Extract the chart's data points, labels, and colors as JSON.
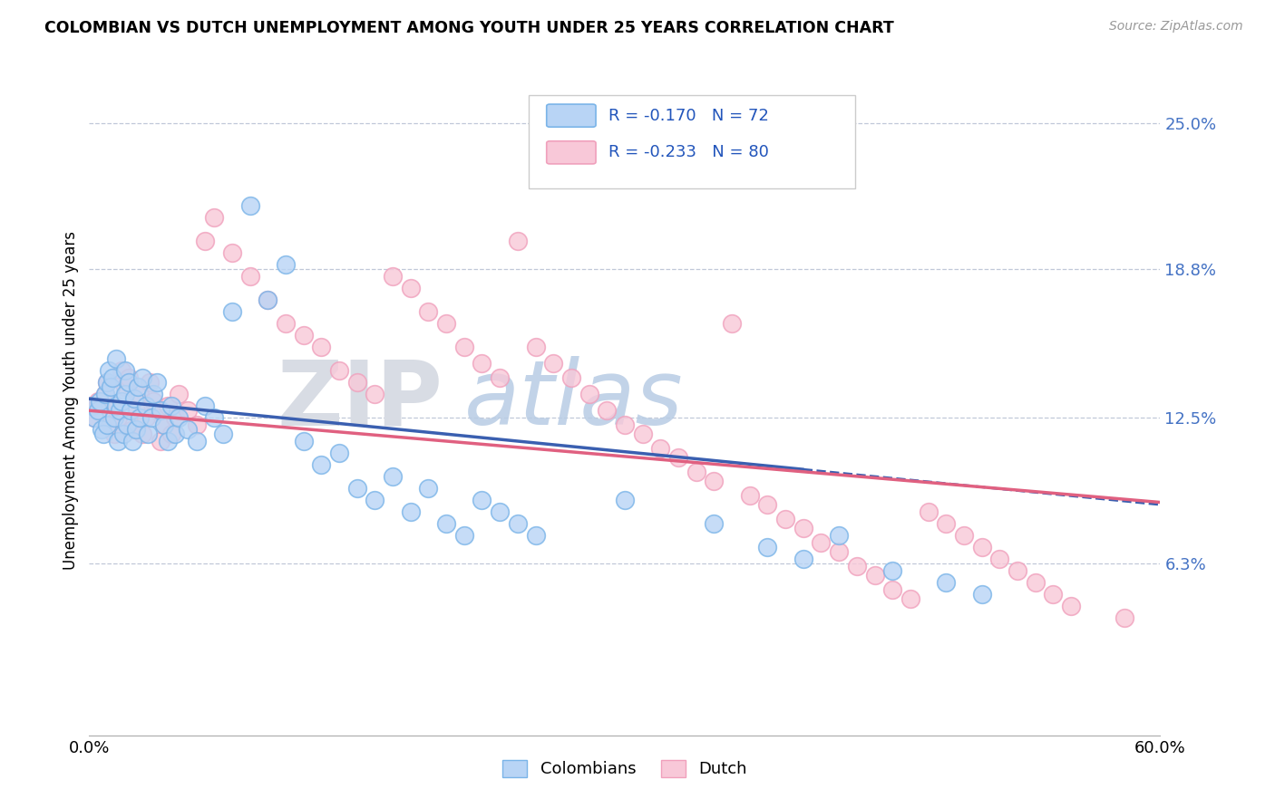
{
  "title": "COLOMBIAN VS DUTCH UNEMPLOYMENT AMONG YOUTH UNDER 25 YEARS CORRELATION CHART",
  "source": "Source: ZipAtlas.com",
  "ylabel": "Unemployment Among Youth under 25 years",
  "yticks_right": [
    0.063,
    0.125,
    0.188,
    0.25
  ],
  "ytick_labels_right": [
    "6.3%",
    "12.5%",
    "18.8%",
    "25.0%"
  ],
  "xlim": [
    0.0,
    0.6
  ],
  "ylim": [
    -0.01,
    0.275
  ],
  "color_col_edge": "#7ab4e8",
  "color_col_fill": "#b8d4f5",
  "color_dutch_edge": "#f0a0bc",
  "color_dutch_fill": "#f8c8d8",
  "color_blue_line": "#3a5fb0",
  "color_pink_line": "#e06080",
  "legend_r_col": "-0.170",
  "legend_n_col": "72",
  "legend_r_dutch": "-0.233",
  "legend_n_dutch": "80",
  "col_scatter_x": [
    0.002,
    0.003,
    0.005,
    0.006,
    0.007,
    0.008,
    0.009,
    0.01,
    0.01,
    0.011,
    0.012,
    0.013,
    0.014,
    0.015,
    0.015,
    0.016,
    0.017,
    0.018,
    0.019,
    0.02,
    0.02,
    0.021,
    0.022,
    0.023,
    0.024,
    0.025,
    0.026,
    0.027,
    0.028,
    0.03,
    0.032,
    0.033,
    0.035,
    0.036,
    0.038,
    0.04,
    0.042,
    0.044,
    0.046,
    0.048,
    0.05,
    0.055,
    0.06,
    0.065,
    0.07,
    0.075,
    0.08,
    0.09,
    0.1,
    0.11,
    0.12,
    0.13,
    0.14,
    0.15,
    0.16,
    0.17,
    0.18,
    0.19,
    0.2,
    0.21,
    0.22,
    0.23,
    0.24,
    0.25,
    0.3,
    0.35,
    0.38,
    0.4,
    0.42,
    0.45,
    0.48,
    0.5
  ],
  "col_scatter_y": [
    0.13,
    0.125,
    0.128,
    0.132,
    0.12,
    0.118,
    0.135,
    0.14,
    0.122,
    0.145,
    0.138,
    0.142,
    0.125,
    0.13,
    0.15,
    0.115,
    0.128,
    0.132,
    0.118,
    0.135,
    0.145,
    0.122,
    0.14,
    0.128,
    0.115,
    0.133,
    0.12,
    0.138,
    0.125,
    0.142,
    0.13,
    0.118,
    0.125,
    0.135,
    0.14,
    0.128,
    0.122,
    0.115,
    0.13,
    0.118,
    0.125,
    0.12,
    0.115,
    0.13,
    0.125,
    0.118,
    0.17,
    0.215,
    0.175,
    0.19,
    0.115,
    0.105,
    0.11,
    0.095,
    0.09,
    0.1,
    0.085,
    0.095,
    0.08,
    0.075,
    0.09,
    0.085,
    0.08,
    0.075,
    0.09,
    0.08,
    0.07,
    0.065,
    0.075,
    0.06,
    0.055,
    0.05
  ],
  "dutch_scatter_x": [
    0.002,
    0.003,
    0.005,
    0.007,
    0.009,
    0.01,
    0.012,
    0.014,
    0.015,
    0.016,
    0.018,
    0.02,
    0.022,
    0.024,
    0.026,
    0.028,
    0.03,
    0.032,
    0.034,
    0.036,
    0.038,
    0.04,
    0.042,
    0.044,
    0.046,
    0.048,
    0.05,
    0.055,
    0.06,
    0.065,
    0.07,
    0.08,
    0.09,
    0.1,
    0.11,
    0.12,
    0.13,
    0.14,
    0.15,
    0.16,
    0.17,
    0.18,
    0.19,
    0.2,
    0.21,
    0.22,
    0.23,
    0.24,
    0.25,
    0.26,
    0.27,
    0.28,
    0.29,
    0.3,
    0.31,
    0.32,
    0.33,
    0.34,
    0.35,
    0.36,
    0.37,
    0.38,
    0.39,
    0.4,
    0.41,
    0.42,
    0.43,
    0.44,
    0.45,
    0.46,
    0.47,
    0.48,
    0.49,
    0.5,
    0.51,
    0.52,
    0.53,
    0.54,
    0.55,
    0.58
  ],
  "dutch_scatter_y": [
    0.13,
    0.125,
    0.132,
    0.128,
    0.135,
    0.14,
    0.122,
    0.118,
    0.13,
    0.125,
    0.145,
    0.138,
    0.142,
    0.12,
    0.128,
    0.135,
    0.118,
    0.125,
    0.14,
    0.132,
    0.128,
    0.115,
    0.122,
    0.13,
    0.118,
    0.125,
    0.135,
    0.128,
    0.122,
    0.2,
    0.21,
    0.195,
    0.185,
    0.175,
    0.165,
    0.16,
    0.155,
    0.145,
    0.14,
    0.135,
    0.185,
    0.18,
    0.17,
    0.165,
    0.155,
    0.148,
    0.142,
    0.2,
    0.155,
    0.148,
    0.142,
    0.135,
    0.128,
    0.122,
    0.118,
    0.112,
    0.108,
    0.102,
    0.098,
    0.165,
    0.092,
    0.088,
    0.082,
    0.078,
    0.072,
    0.068,
    0.062,
    0.058,
    0.052,
    0.048,
    0.085,
    0.08,
    0.075,
    0.07,
    0.065,
    0.06,
    0.055,
    0.05,
    0.045,
    0.04
  ]
}
